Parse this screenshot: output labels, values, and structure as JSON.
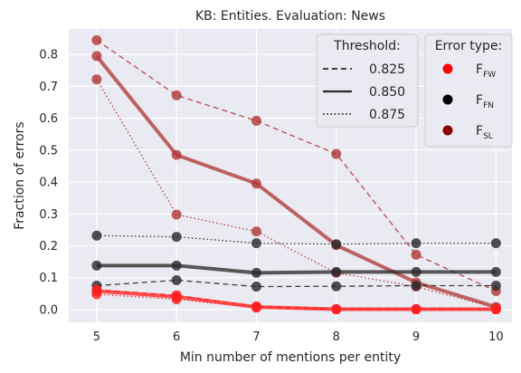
{
  "chart_data": {
    "type": "line",
    "title": "KB: Entities. Evaluation: News",
    "xlabel": "Min number of mentions per entity",
    "ylabel": "Fraction of errors",
    "x": [
      5,
      6,
      7,
      8,
      9,
      10
    ],
    "xlim": [
      4.65,
      10.2
    ],
    "ylim": [
      -0.04,
      0.88
    ],
    "xticks": [
      "5",
      "6",
      "7",
      "8",
      "9",
      "10"
    ],
    "yticks": [
      "0.0",
      "0.1",
      "0.2",
      "0.3",
      "0.4",
      "0.5",
      "0.6",
      "0.7",
      "0.8"
    ],
    "grid": true,
    "background": "#eaeaf2",
    "series": [
      {
        "error_type": "FSL",
        "threshold": "0.825",
        "style": "dashed",
        "color": "#b03a3a",
        "values": [
          0.845,
          0.672,
          0.592,
          0.488,
          0.172,
          0.058
        ]
      },
      {
        "error_type": "FSL",
        "threshold": "0.850",
        "style": "solid",
        "color": "#b03a3a",
        "values": [
          0.795,
          0.485,
          0.395,
          0.202,
          0.085,
          0.008
        ]
      },
      {
        "error_type": "FSL",
        "threshold": "0.875",
        "style": "dotted",
        "color": "#b03a3a",
        "values": [
          0.722,
          0.298,
          0.245,
          0.115,
          0.072,
          0.005
        ]
      },
      {
        "error_type": "FN",
        "threshold": "0.825",
        "style": "dashed",
        "color": "#2b2b2b",
        "values": [
          0.075,
          0.092,
          0.072,
          0.073,
          0.075,
          0.075
        ]
      },
      {
        "error_type": "FN",
        "threshold": "0.850",
        "style": "solid",
        "color": "#2b2b2b",
        "values": [
          0.138,
          0.138,
          0.115,
          0.118,
          0.118,
          0.118
        ]
      },
      {
        "error_type": "FN",
        "threshold": "0.875",
        "style": "dotted",
        "color": "#2b2b2b",
        "values": [
          0.232,
          0.228,
          0.208,
          0.205,
          0.208,
          0.208
        ]
      },
      {
        "error_type": "FW",
        "threshold": "0.825",
        "style": "dashed",
        "color": "#ff2020",
        "values": [
          0.062,
          0.045,
          0.01,
          0.001,
          0.001,
          0.001
        ]
      },
      {
        "error_type": "FW",
        "threshold": "0.850",
        "style": "solid",
        "color": "#ff2020",
        "values": [
          0.058,
          0.04,
          0.008,
          0.001,
          0.001,
          0.001
        ]
      },
      {
        "error_type": "FW",
        "threshold": "0.875",
        "style": "dotted",
        "color": "#ff2020",
        "values": [
          0.048,
          0.032,
          0.006,
          0.001,
          0.001,
          0.001
        ]
      }
    ],
    "legend_threshold": {
      "title": "Threshold:",
      "placement": "top-right",
      "entries": [
        {
          "label": "0.825",
          "style": "dashed"
        },
        {
          "label": "0.850",
          "style": "solid"
        },
        {
          "label": "0.875",
          "style": "dotted"
        }
      ]
    },
    "legend_error": {
      "title": "Error type:",
      "placement": "top-right",
      "entries": [
        {
          "base": "F",
          "sub": "FW",
          "color": "#ff0000"
        },
        {
          "base": "F",
          "sub": "FN",
          "color": "#000000"
        },
        {
          "base": "F",
          "sub": "SL",
          "color": "#8b0000"
        }
      ]
    }
  }
}
